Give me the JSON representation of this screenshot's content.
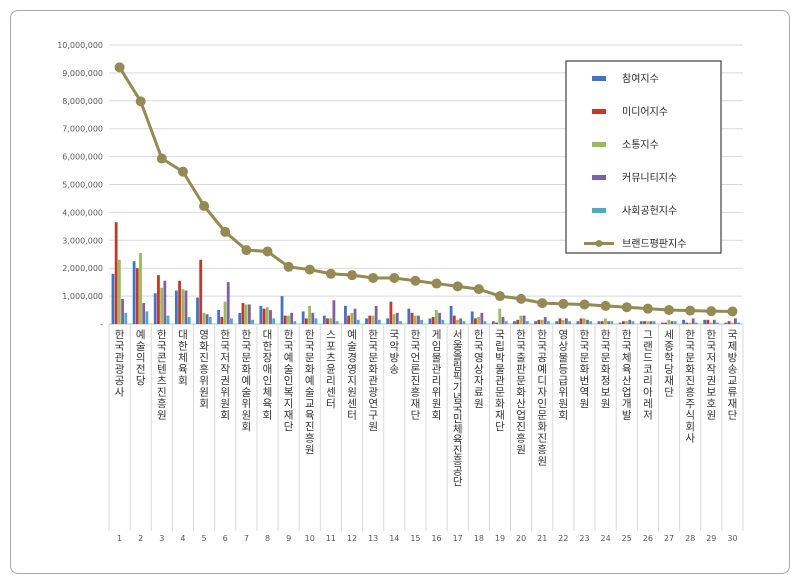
{
  "chart_data": {
    "type": "bar",
    "title": "",
    "xlabel": "",
    "ylabel": "",
    "ylim": [
      0,
      10000000
    ],
    "yticks": [
      "-",
      "1,000,000",
      "2,000,000",
      "3,000,000",
      "4,000,000",
      "5,000,000",
      "6,000,000",
      "7,000,000",
      "8,000,000",
      "9,000,000",
      "10,000,000"
    ],
    "grid": true,
    "legend_position": "right",
    "x_numbers": [
      "1",
      "2",
      "3",
      "4",
      "5",
      "6",
      "7",
      "8",
      "9",
      "10",
      "11",
      "12",
      "13",
      "14",
      "15",
      "16",
      "17",
      "18",
      "19",
      "20",
      "21",
      "22",
      "23",
      "24",
      "25",
      "26",
      "27",
      "28",
      "29",
      "30"
    ],
    "categories": [
      "한국관광공사",
      "예술의전당",
      "한국콘텐츠진흥원",
      "대한체육회",
      "영화진흥위원회",
      "한국저작권위원회",
      "한국문화예술위원회",
      "대한장애인체육회",
      "한국예술인복지재단",
      "한국문화예술교육진흥원",
      "스포츠윤리센터",
      "예술경영지원센터",
      "한국문화관광연구원",
      "국악방송",
      "한국언론진흥재단",
      "게임물관리위원회",
      "서울올림픽기념국민체육진흥공단",
      "한국영상자료원",
      "국립박물관문화재단",
      "한국출판문화산업진흥원",
      "한국공예디자인문화진흥원",
      "영상물등급위원회",
      "한국문화번역원",
      "한국문화정보원",
      "한국체육산업개발",
      "그랜드코리아레저",
      "세종학당재단",
      "한국문화진흥주식회사",
      "한국저작권보호원",
      "국제방송교류재단"
    ],
    "series": [
      {
        "name": "참여지수",
        "color": "#4472c4",
        "values": [
          1800000,
          2250000,
          1100000,
          1200000,
          950000,
          500000,
          400000,
          650000,
          1000000,
          450000,
          300000,
          650000,
          200000,
          200000,
          550000,
          200000,
          650000,
          450000,
          100000,
          100000,
          100000,
          100000,
          100000,
          100000,
          50000,
          100000,
          50000,
          150000,
          150000,
          50000
        ]
      },
      {
        "name": "미디어지수",
        "color": "#c0392b",
        "values": [
          3650000,
          2000000,
          1750000,
          1550000,
          2300000,
          250000,
          750000,
          550000,
          300000,
          200000,
          200000,
          300000,
          300000,
          800000,
          400000,
          250000,
          300000,
          200000,
          50000,
          150000,
          150000,
          200000,
          200000,
          100000,
          100000,
          100000,
          50000,
          50000,
          150000,
          100000
        ]
      },
      {
        "name": "소통지수",
        "color": "#9bbb59",
        "values": [
          2300000,
          2550000,
          1300000,
          1250000,
          400000,
          800000,
          700000,
          600000,
          300000,
          650000,
          200000,
          400000,
          300000,
          350000,
          300000,
          500000,
          150000,
          250000,
          550000,
          300000,
          150000,
          150000,
          200000,
          200000,
          100000,
          100000,
          150000,
          50000,
          50000,
          50000
        ]
      },
      {
        "name": "커뮤니티지수",
        "color": "#7f5fa6",
        "values": [
          900000,
          750000,
          1550000,
          1200000,
          350000,
          1500000,
          700000,
          500000,
          400000,
          400000,
          850000,
          550000,
          650000,
          400000,
          300000,
          400000,
          200000,
          400000,
          250000,
          300000,
          250000,
          200000,
          150000,
          100000,
          150000,
          100000,
          100000,
          200000,
          150000,
          200000
        ]
      },
      {
        "name": "사회공헌지수",
        "color": "#4bacc6",
        "values": [
          400000,
          450000,
          300000,
          250000,
          250000,
          200000,
          150000,
          200000,
          100000,
          200000,
          100000,
          150000,
          150000,
          100000,
          150000,
          150000,
          100000,
          100000,
          100000,
          100000,
          100000,
          100000,
          100000,
          100000,
          100000,
          100000,
          100000,
          50000,
          50000,
          50000
        ]
      },
      {
        "name": "브랜드평판지수",
        "color": "#948a54",
        "values": [
          9200000,
          7980000,
          5930000,
          5460000,
          4230000,
          3300000,
          2650000,
          2600000,
          2050000,
          1950000,
          1800000,
          1750000,
          1650000,
          1650000,
          1550000,
          1450000,
          1350000,
          1250000,
          1000000,
          900000,
          750000,
          720000,
          700000,
          650000,
          600000,
          550000,
          500000,
          480000,
          460000,
          450000
        ]
      }
    ]
  }
}
